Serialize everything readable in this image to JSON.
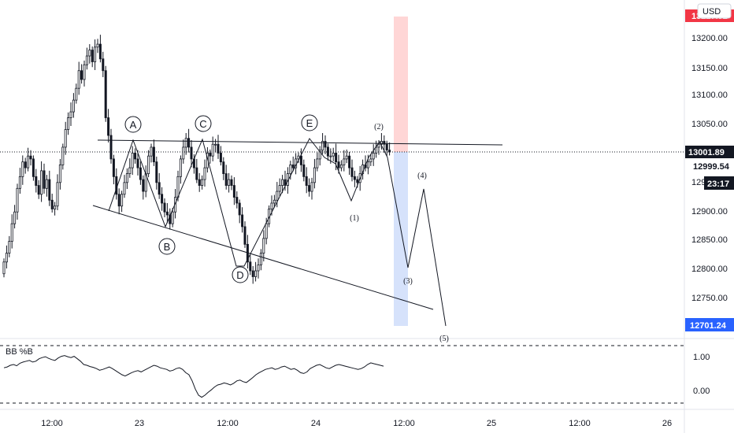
{
  "currency_button": "USD",
  "indicator": {
    "label": "BB %B"
  },
  "price_tags": {
    "top": "13227.92",
    "last": "13001.89",
    "prev_close": "12999.54",
    "countdown": "23:17",
    "target": "12701.24"
  },
  "wave_labels": {
    "letters": [
      "A",
      "B",
      "C",
      "D",
      "E"
    ],
    "numbers": [
      "(1)",
      "(2)",
      "(3)",
      "(4)",
      "(5)"
    ]
  },
  "colors": {
    "bull_body": "#ffffff",
    "candle_edge": "#131722",
    "pattern_line": "#131722",
    "stop_zone": "#ffd6d6",
    "target_zone": "#d6e2fb",
    "last_price_tag": "#131722",
    "target_tag": "#2962ff",
    "top_tag": "#f23645"
  },
  "chart_data": [
    {
      "type": "candlestick",
      "title": "",
      "xlabel": "",
      "ylabel": "",
      "x_tick_labels": [
        "12:00",
        "23",
        "12:00",
        "24",
        "12:00",
        "25",
        "12:00",
        "26"
      ],
      "y_tick_labels": [
        "13200.00",
        "13150.00",
        "13100.00",
        "13050.00",
        "12950.00",
        "12900.00",
        "12850.00",
        "12800.00",
        "12750.00"
      ],
      "ylim": [
        12685,
        13260
      ],
      "grid": false,
      "price_path_close": [
        12815,
        12830,
        12850,
        12880,
        12900,
        12940,
        12960,
        12985,
        12975,
        12995,
        12990,
        12960,
        12945,
        12930,
        12970,
        12940,
        12955,
        12920,
        12905,
        12910,
        12950,
        12980,
        13010,
        13040,
        13060,
        13070,
        13090,
        13110,
        13140,
        13125,
        13150,
        13165,
        13175,
        13155,
        13180,
        13185,
        13160,
        13140,
        13060,
        13030,
        12990,
        12960,
        12930,
        12910,
        12930,
        12950,
        12965,
        12975,
        13000,
        12990,
        12975,
        12955,
        12935,
        12965,
        12995,
        13010,
        12985,
        12950,
        12930,
        12915,
        12900,
        12895,
        12880,
        12900,
        12925,
        12960,
        12990,
        13010,
        13025,
        13010,
        12990,
        12975,
        12955,
        12945,
        12955,
        12975,
        13000,
        12995,
        13015,
        13015,
        13000,
        12985,
        12965,
        12945,
        12955,
        12945,
        12925,
        12915,
        12895,
        12875,
        12845,
        12815,
        12800,
        12790,
        12800,
        12810,
        12830,
        12855,
        12880,
        12905,
        12915,
        12920,
        12935,
        12945,
        12955,
        12945,
        12965,
        12980,
        12975,
        12990,
        12995,
        12980,
        12960,
        12945,
        12935,
        12950,
        12975,
        12990,
        13005,
        13020,
        13010,
        12995,
        12995,
        13000,
        12985,
        12975,
        12980,
        12990,
        12995,
        12975,
        12960,
        12955,
        12950,
        12965,
        12980,
        12975,
        12985,
        12990,
        13000,
        13010,
        13015,
        13020,
        13015,
        13005,
        13002
      ],
      "pattern_points": [
        {
          "label": "A",
          "x_index": 48,
          "y": 13020
        },
        {
          "label": "B",
          "x_index": 61,
          "y": 12870
        },
        {
          "label": "C",
          "x_index": 75,
          "y": 13020
        },
        {
          "label": "D",
          "x_index": 93,
          "y": 12790
        },
        {
          "label": "E",
          "x_index": 118,
          "y": 13020
        },
        {
          "label": "(1)",
          "y": 12915
        },
        {
          "label": "(2)",
          "y": 13020
        },
        {
          "label": "(3)",
          "y": 12805
        },
        {
          "label": "(4)",
          "y": 12935
        },
        {
          "label": "(5)",
          "y": 12700
        }
      ],
      "stop_zone": {
        "from": 13000,
        "to": 13245
      },
      "target_zone": {
        "from": 12705,
        "to": 13000
      }
    },
    {
      "type": "line",
      "title": "BB %B",
      "y_tick_labels": [
        "1.00",
        "0.00"
      ],
      "ylim": [
        -0.2,
        1.3
      ],
      "reference_lines": [
        1.2,
        -0.1
      ],
      "values": [
        0.72,
        0.74,
        0.78,
        0.8,
        0.77,
        0.83,
        0.86,
        0.88,
        0.9,
        0.86,
        0.88,
        0.94,
        0.97,
        0.99,
        0.95,
        0.92,
        0.9,
        0.96,
        1.0,
        1.02,
        0.99,
        0.97,
        1.0,
        0.94,
        0.88,
        0.8,
        0.78,
        0.75,
        0.73,
        0.7,
        0.66,
        0.68,
        0.71,
        0.74,
        0.7,
        0.65,
        0.6,
        0.55,
        0.52,
        0.56,
        0.6,
        0.63,
        0.65,
        0.62,
        0.66,
        0.7,
        0.74,
        0.78,
        0.76,
        0.72,
        0.7,
        0.68,
        0.64,
        0.66,
        0.7,
        0.72,
        0.68,
        0.6,
        0.55,
        0.4,
        0.2,
        0.05,
        0.0,
        0.05,
        0.12,
        0.18,
        0.25,
        0.3,
        0.32,
        0.35,
        0.33,
        0.3,
        0.34,
        0.4,
        0.42,
        0.38,
        0.36,
        0.42,
        0.48,
        0.55,
        0.6,
        0.64,
        0.68,
        0.7,
        0.72,
        0.68,
        0.7,
        0.74,
        0.76,
        0.72,
        0.68,
        0.7,
        0.66,
        0.6,
        0.58,
        0.62,
        0.7,
        0.74,
        0.78,
        0.8,
        0.76,
        0.72,
        0.7,
        0.74,
        0.78,
        0.8,
        0.78,
        0.76,
        0.74,
        0.72,
        0.7,
        0.68,
        0.7,
        0.74,
        0.8,
        0.84,
        0.82,
        0.8,
        0.78,
        0.76
      ]
    }
  ]
}
